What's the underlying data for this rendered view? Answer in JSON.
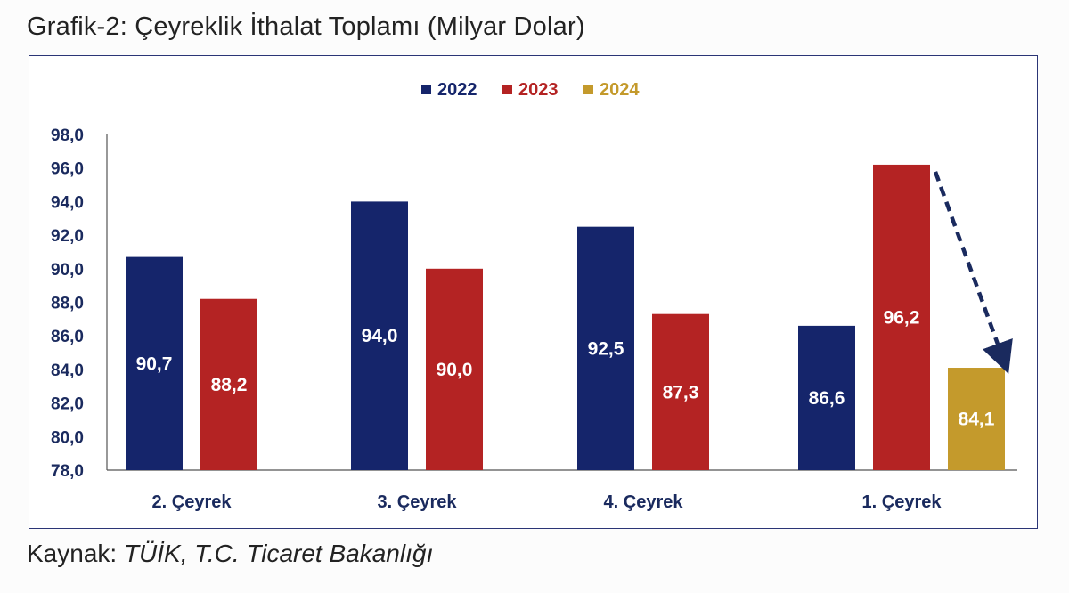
{
  "title": "Grafik-2: Çeyreklik İthalat Toplamı (Milyar Dolar)",
  "source": {
    "label": "Kaynak:",
    "text": "TÜİK, T.C. Ticaret Bakanlığı"
  },
  "chart_data": {
    "type": "bar",
    "categories": [
      "2. Çeyrek",
      "3. Çeyrek",
      "4. Çeyrek",
      "1. Çeyrek"
    ],
    "series": [
      {
        "name": "2022",
        "color": "#15256b",
        "values": [
          90.7,
          94.0,
          92.5,
          86.6
        ]
      },
      {
        "name": "2023",
        "color": "#b42323",
        "values": [
          88.2,
          90.0,
          87.3,
          96.2
        ]
      },
      {
        "name": "2024",
        "color": "#c49a2c",
        "values": [
          null,
          null,
          null,
          84.1
        ]
      }
    ],
    "value_labels": [
      [
        "90,7",
        "94,0",
        "92,5",
        "86,6"
      ],
      [
        "88,2",
        "90,0",
        "87,3",
        "96,2"
      ],
      [
        null,
        null,
        null,
        "84,1"
      ]
    ],
    "ylim": [
      78,
      98
    ],
    "yticks": [
      "78,0",
      "80,0",
      "82,0",
      "84,0",
      "86,0",
      "88,0",
      "90,0",
      "92,0",
      "94,0",
      "96,0",
      "98,0"
    ],
    "ytick_values": [
      78,
      80,
      82,
      84,
      86,
      88,
      90,
      92,
      94,
      96,
      98
    ],
    "legend_position": "top-center",
    "annotation": "dashed arrow from 2023 Q1 bar top down to 2024 Q1 bar",
    "grid": false,
    "xlabel": "",
    "ylabel": ""
  }
}
